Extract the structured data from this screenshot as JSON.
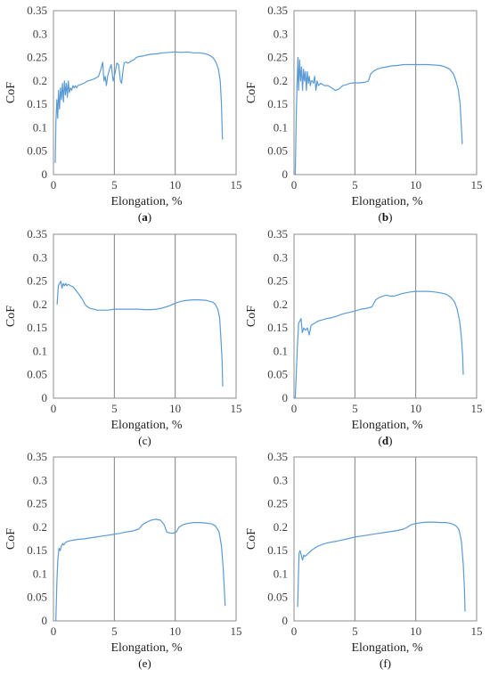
{
  "chart_data": [
    {
      "type": "line",
      "panel_label": "(a)",
      "panel_letter": "a",
      "bold_label": true,
      "xlabel": "Elongation, %",
      "ylabel": "CoF",
      "xlim": [
        0,
        15
      ],
      "ylim": [
        0,
        0.35
      ],
      "xticks": [
        "0",
        "5",
        "10",
        "15"
      ],
      "yticks": [
        "0",
        "0.05",
        "0.1",
        "0.15",
        "0.2",
        "0.25",
        "0.3",
        "0.35"
      ],
      "grid": "vertical at x-ticks",
      "series": [
        {
          "color": "#5b9bd5",
          "x": [
            0.15,
            0.2,
            0.28,
            0.35,
            0.42,
            0.5,
            0.58,
            0.66,
            0.74,
            0.82,
            0.9,
            0.98,
            1.06,
            1.14,
            1.22,
            1.3,
            1.4,
            1.5,
            1.6,
            1.7,
            1.8,
            1.9,
            2.0,
            2.2,
            2.5,
            2.8,
            3.1,
            3.4,
            3.7,
            3.9,
            4.05,
            4.15,
            4.25,
            4.35,
            4.45,
            4.6,
            4.75,
            4.9,
            5.05,
            5.2,
            5.35,
            5.5,
            5.6,
            5.7,
            5.8,
            5.9,
            6.0,
            6.1,
            6.25,
            6.4,
            6.6,
            6.8,
            7.0,
            7.3,
            7.6,
            8.0,
            8.5,
            9.0,
            9.5,
            10.0,
            10.5,
            11.0,
            11.5,
            12.0,
            12.5,
            12.8,
            13.1,
            13.35,
            13.55,
            13.7,
            13.8,
            13.85,
            13.88
          ],
          "y": [
            0.025,
            0.11,
            0.16,
            0.12,
            0.18,
            0.14,
            0.185,
            0.16,
            0.195,
            0.155,
            0.2,
            0.17,
            0.195,
            0.165,
            0.2,
            0.175,
            0.185,
            0.18,
            0.19,
            0.185,
            0.19,
            0.185,
            0.19,
            0.192,
            0.195,
            0.2,
            0.202,
            0.205,
            0.21,
            0.225,
            0.24,
            0.2,
            0.21,
            0.19,
            0.21,
            0.225,
            0.235,
            0.2,
            0.215,
            0.238,
            0.235,
            0.2,
            0.195,
            0.22,
            0.238,
            0.24,
            0.24,
            0.238,
            0.24,
            0.243,
            0.245,
            0.25,
            0.252,
            0.253,
            0.255,
            0.257,
            0.258,
            0.26,
            0.261,
            0.262,
            0.261,
            0.262,
            0.26,
            0.26,
            0.258,
            0.255,
            0.25,
            0.24,
            0.225,
            0.2,
            0.15,
            0.1,
            0.075
          ]
        }
      ]
    },
    {
      "type": "line",
      "panel_label": "(b)",
      "panel_letter": "b",
      "bold_label": true,
      "xlabel": "Elongation, %",
      "ylabel": "CoF",
      "xlim": [
        0,
        15
      ],
      "ylim": [
        0,
        0.35
      ],
      "xticks": [
        "0",
        "5",
        "10",
        "15"
      ],
      "yticks": [
        "0",
        "0.05",
        "0.1",
        "0.15",
        "0.2",
        "0.25",
        "0.3",
        "0.35"
      ],
      "grid": "vertical at x-ticks",
      "series": [
        {
          "color": "#5b9bd5",
          "x": [
            0.1,
            0.18,
            0.25,
            0.32,
            0.38,
            0.46,
            0.54,
            0.62,
            0.7,
            0.78,
            0.86,
            0.94,
            1.02,
            1.1,
            1.18,
            1.26,
            1.34,
            1.42,
            1.5,
            1.6,
            1.7,
            1.8,
            1.9,
            2.0,
            2.2,
            2.5,
            2.8,
            3.1,
            3.4,
            3.7,
            4.0,
            4.3,
            4.6,
            5.0,
            5.4,
            5.8,
            6.1,
            6.3,
            6.5,
            6.8,
            7.2,
            7.6,
            8.0,
            8.5,
            9.0,
            9.5,
            10.0,
            10.5,
            11.0,
            11.5,
            12.0,
            12.4,
            12.8,
            13.1,
            13.3,
            13.5,
            13.65,
            13.75,
            13.82
          ],
          "y": [
            0.0,
            0.12,
            0.19,
            0.25,
            0.18,
            0.245,
            0.2,
            0.23,
            0.18,
            0.225,
            0.2,
            0.22,
            0.18,
            0.22,
            0.195,
            0.21,
            0.19,
            0.2,
            0.2,
            0.195,
            0.21,
            0.18,
            0.2,
            0.19,
            0.195,
            0.19,
            0.19,
            0.185,
            0.18,
            0.183,
            0.19,
            0.192,
            0.195,
            0.196,
            0.196,
            0.197,
            0.2,
            0.215,
            0.22,
            0.225,
            0.228,
            0.23,
            0.232,
            0.233,
            0.235,
            0.235,
            0.235,
            0.235,
            0.235,
            0.234,
            0.233,
            0.23,
            0.225,
            0.215,
            0.2,
            0.18,
            0.15,
            0.1,
            0.065
          ]
        }
      ]
    },
    {
      "type": "line",
      "panel_label": "(c)",
      "panel_letter": "c",
      "bold_label": false,
      "xlabel": "Elongation, %",
      "ylabel": "CoF",
      "xlim": [
        0,
        15
      ],
      "ylim": [
        0,
        0.35
      ],
      "xticks": [
        "0",
        "5",
        "10",
        "15"
      ],
      "yticks": [
        "0",
        "0.05",
        "0.1",
        "0.15",
        "0.2",
        "0.25",
        "0.3",
        "0.35"
      ],
      "grid": "vertical at x-ticks",
      "series": [
        {
          "color": "#5b9bd5",
          "x": [
            0.3,
            0.4,
            0.5,
            0.6,
            0.7,
            0.8,
            0.9,
            1.0,
            1.1,
            1.2,
            1.3,
            1.4,
            1.6,
            1.8,
            2.0,
            2.2,
            2.4,
            2.6,
            2.8,
            3.0,
            3.3,
            3.6,
            4.0,
            4.5,
            5.0,
            5.5,
            6.0,
            6.5,
            7.0,
            7.5,
            8.0,
            8.5,
            9.0,
            9.5,
            10.0,
            10.5,
            11.0,
            11.5,
            12.0,
            12.5,
            12.8,
            13.1,
            13.3,
            13.5,
            13.65,
            13.75,
            13.85,
            13.9
          ],
          "y": [
            0.2,
            0.24,
            0.245,
            0.25,
            0.235,
            0.245,
            0.24,
            0.245,
            0.24,
            0.243,
            0.242,
            0.24,
            0.238,
            0.232,
            0.225,
            0.218,
            0.21,
            0.2,
            0.195,
            0.192,
            0.19,
            0.188,
            0.188,
            0.188,
            0.19,
            0.19,
            0.19,
            0.19,
            0.19,
            0.189,
            0.189,
            0.19,
            0.193,
            0.197,
            0.203,
            0.207,
            0.209,
            0.21,
            0.21,
            0.209,
            0.207,
            0.205,
            0.2,
            0.19,
            0.17,
            0.13,
            0.08,
            0.025
          ]
        }
      ]
    },
    {
      "type": "line",
      "panel_label": "(d)",
      "panel_letter": "d",
      "bold_label": true,
      "xlabel": "Elongation, %",
      "ylabel": "CoF",
      "xlim": [
        0,
        15
      ],
      "ylim": [
        0,
        0.35
      ],
      "xticks": [
        "0",
        "5",
        "10",
        "15"
      ],
      "yticks": [
        "0",
        "0.05",
        "0.1",
        "0.15",
        "0.2",
        "0.25",
        "0.3",
        "0.35"
      ],
      "grid": "vertical at x-ticks",
      "series": [
        {
          "color": "#5b9bd5",
          "x": [
            0.1,
            0.18,
            0.28,
            0.38,
            0.48,
            0.58,
            0.68,
            0.8,
            0.95,
            1.1,
            1.25,
            1.4,
            1.55,
            1.7,
            1.85,
            2.0,
            2.3,
            2.7,
            3.1,
            3.5,
            4.0,
            4.5,
            5.0,
            5.5,
            6.0,
            6.4,
            6.7,
            7.0,
            7.3,
            7.6,
            7.9,
            8.2,
            8.5,
            8.8,
            9.2,
            9.6,
            10.0,
            10.5,
            11.0,
            11.5,
            12.0,
            12.5,
            12.9,
            13.2,
            13.4,
            13.6,
            13.75,
            13.85,
            13.9
          ],
          "y": [
            0.0,
            0.05,
            0.11,
            0.16,
            0.165,
            0.17,
            0.14,
            0.15,
            0.145,
            0.15,
            0.135,
            0.155,
            0.158,
            0.16,
            0.163,
            0.165,
            0.167,
            0.17,
            0.172,
            0.175,
            0.18,
            0.183,
            0.186,
            0.19,
            0.192,
            0.195,
            0.21,
            0.215,
            0.218,
            0.22,
            0.218,
            0.218,
            0.22,
            0.223,
            0.225,
            0.227,
            0.228,
            0.228,
            0.228,
            0.227,
            0.225,
            0.222,
            0.215,
            0.205,
            0.19,
            0.165,
            0.13,
            0.09,
            0.05
          ]
        }
      ]
    },
    {
      "type": "line",
      "panel_label": "(e)",
      "panel_letter": "e",
      "bold_label": false,
      "xlabel": "Elongation, %",
      "ylabel": "CoF",
      "xlim": [
        0,
        15
      ],
      "ylim": [
        0,
        0.35
      ],
      "xticks": [
        "0",
        "5",
        "10",
        "15"
      ],
      "yticks": [
        "0",
        "0.05",
        "0.1",
        "0.15",
        "0.2",
        "0.25",
        "0.3",
        "0.35"
      ],
      "grid": "vertical at x-ticks",
      "series": [
        {
          "color": "#5b9bd5",
          "x": [
            0.2,
            0.28,
            0.36,
            0.45,
            0.55,
            0.65,
            0.75,
            0.85,
            1.0,
            1.2,
            1.5,
            2.0,
            2.5,
            3.0,
            3.5,
            4.0,
            4.5,
            5.0,
            5.5,
            6.0,
            6.5,
            7.0,
            7.3,
            7.6,
            8.0,
            8.4,
            8.8,
            9.1,
            9.3,
            9.5,
            9.8,
            10.1,
            10.3,
            10.6,
            11.0,
            11.5,
            12.0,
            12.5,
            13.0,
            13.3,
            13.6,
            13.8,
            13.95,
            14.05,
            14.1
          ],
          "y": [
            0.0,
            0.08,
            0.13,
            0.155,
            0.15,
            0.16,
            0.165,
            0.162,
            0.168,
            0.17,
            0.172,
            0.174,
            0.175,
            0.177,
            0.179,
            0.181,
            0.183,
            0.185,
            0.187,
            0.19,
            0.192,
            0.196,
            0.205,
            0.21,
            0.215,
            0.217,
            0.215,
            0.205,
            0.19,
            0.188,
            0.187,
            0.19,
            0.2,
            0.205,
            0.208,
            0.21,
            0.21,
            0.209,
            0.207,
            0.203,
            0.19,
            0.16,
            0.11,
            0.06,
            0.032
          ]
        }
      ]
    },
    {
      "type": "line",
      "panel_label": "(f)",
      "panel_letter": "f",
      "bold_label": false,
      "xlabel": "Elongation, %",
      "ylabel": "CoF",
      "xlim": [
        0,
        15
      ],
      "ylim": [
        0,
        0.35
      ],
      "xticks": [
        "0",
        "5",
        "10",
        "15"
      ],
      "yticks": [
        "0",
        "0.05",
        "0.1",
        "0.15",
        "0.2",
        "0.25",
        "0.3",
        "0.35"
      ],
      "grid": "vertical at x-ticks",
      "series": [
        {
          "color": "#5b9bd5",
          "x": [
            0.3,
            0.36,
            0.42,
            0.5,
            0.6,
            0.7,
            0.8,
            0.9,
            1.0,
            1.2,
            1.5,
            2.0,
            2.5,
            3.0,
            3.5,
            4.0,
            4.5,
            5.0,
            5.5,
            6.0,
            6.5,
            7.0,
            7.5,
            8.0,
            8.5,
            9.0,
            9.3,
            9.6,
            10.0,
            10.5,
            11.0,
            11.5,
            12.0,
            12.5,
            13.0,
            13.3,
            13.55,
            13.75,
            13.9,
            14.0,
            14.05
          ],
          "y": [
            0.03,
            0.09,
            0.145,
            0.15,
            0.14,
            0.13,
            0.14,
            0.138,
            0.14,
            0.145,
            0.152,
            0.16,
            0.165,
            0.168,
            0.17,
            0.173,
            0.176,
            0.179,
            0.181,
            0.183,
            0.185,
            0.187,
            0.189,
            0.191,
            0.193,
            0.196,
            0.2,
            0.205,
            0.208,
            0.21,
            0.211,
            0.211,
            0.21,
            0.21,
            0.207,
            0.203,
            0.195,
            0.17,
            0.12,
            0.07,
            0.02
          ]
        }
      ]
    }
  ]
}
